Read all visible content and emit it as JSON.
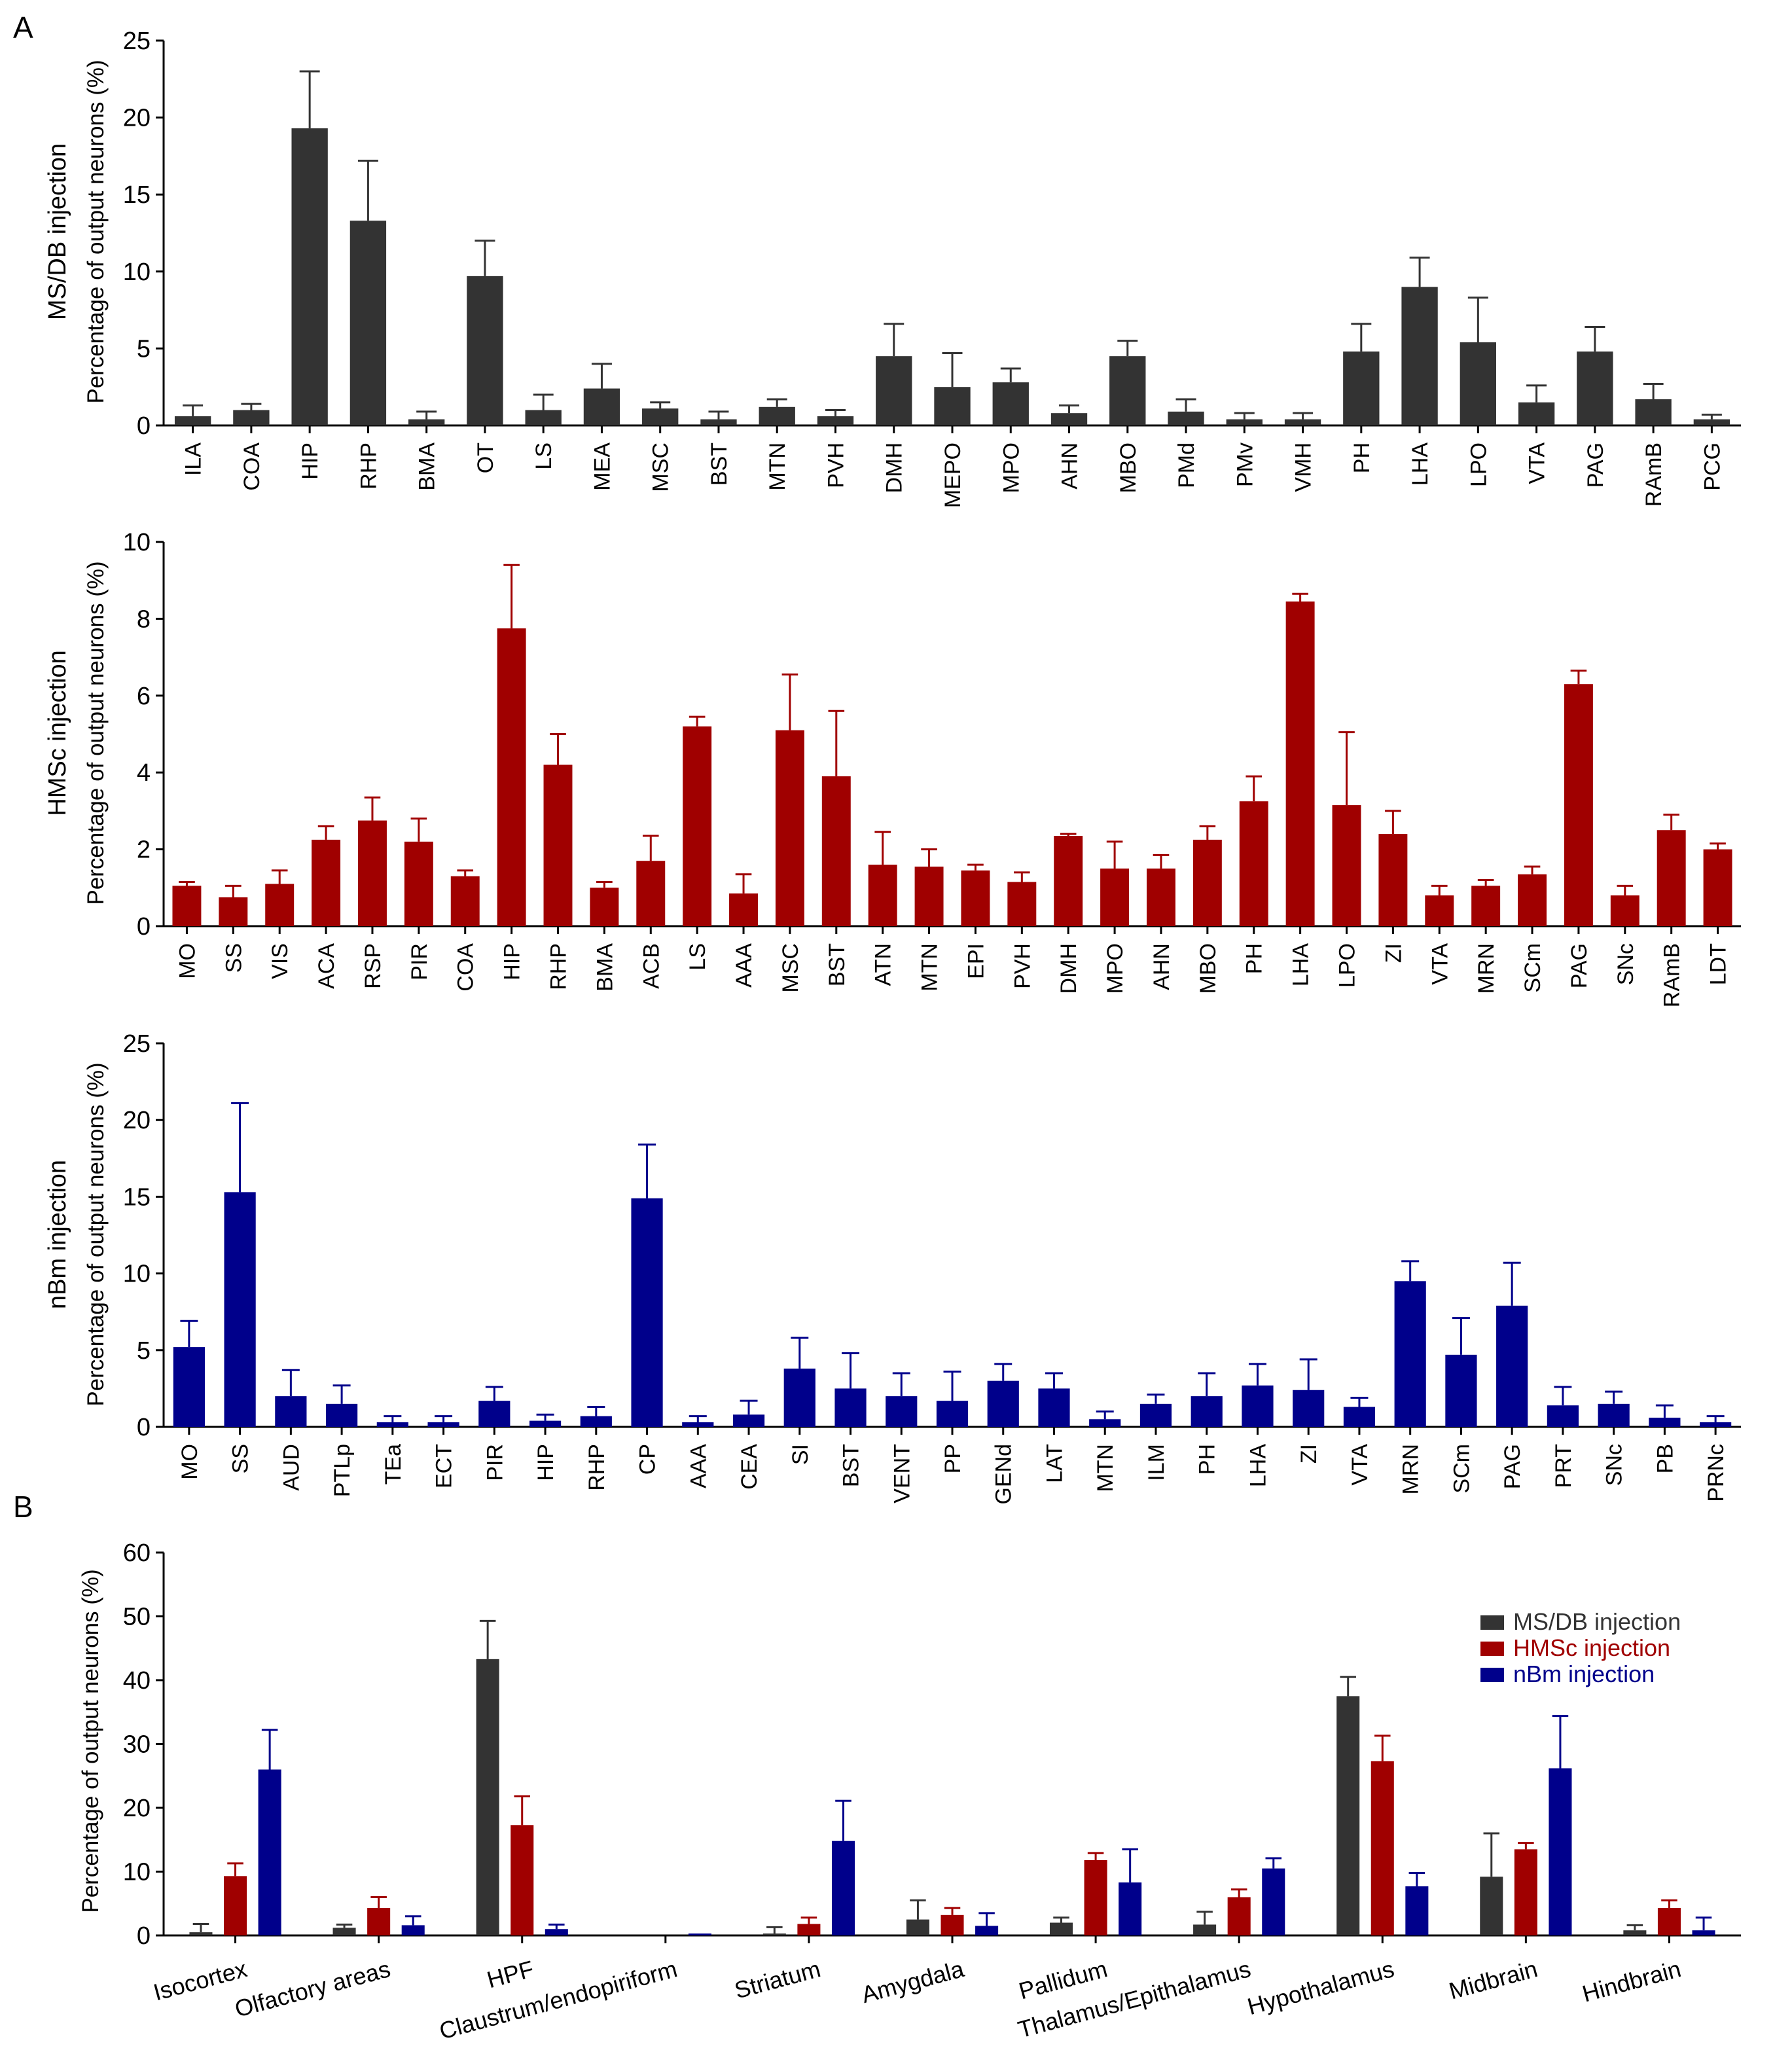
{
  "panels": [
    {
      "panel_label": "A",
      "ylabel": "MS/DB injection",
      "ylabel2": "Percentage of output neurons (%)",
      "ylim": [
        0,
        25
      ],
      "yticks": [
        "0",
        "5",
        "10",
        "15",
        "20",
        "25"
      ],
      "color": "#333333"
    },
    {
      "panel_label": "",
      "ylabel": "HMSc injection",
      "ylabel2": "Percentage of output neurons (%)",
      "ylim": [
        0,
        10
      ],
      "yticks": [
        "0",
        "2",
        "4",
        "6",
        "8",
        "10"
      ],
      "color": "#a00000"
    },
    {
      "panel_label": "",
      "ylabel": "nBm injection",
      "ylabel2": "Percentage of output neurons (%)",
      "ylim": [
        0,
        25
      ],
      "yticks": [
        "0",
        "5",
        "10",
        "15",
        "20",
        "25"
      ],
      "color": "#00008b"
    },
    {
      "panel_label": "B",
      "ylabel": "",
      "ylabel2": "Percentage of output neurons (%)",
      "ylim": [
        0,
        60
      ],
      "yticks": [
        "0",
        "10",
        "20",
        "30",
        "40",
        "50",
        "60"
      ],
      "legend": [
        "MS/DB injection",
        "HMSc injection",
        "nBm injection"
      ],
      "legend_colors": [
        "#333333",
        "#a00000",
        "#00008b"
      ]
    }
  ],
  "chart_data": [
    {
      "type": "bar",
      "title": "",
      "ylabel": "Percentage of output neurons (%)",
      "ylim": [
        0,
        25
      ],
      "categories": [
        "ILA",
        "COA",
        "HIP",
        "RHP",
        "BMA",
        "OT",
        "LS",
        "MEA",
        "MSC",
        "BST",
        "MTN",
        "PVH",
        "DMH",
        "MEPO",
        "MPO",
        "AHN",
        "MBO",
        "PMd",
        "PMv",
        "VMH",
        "PH",
        "LHA",
        "LPO",
        "VTA",
        "PAG",
        "RAmB",
        "PCG"
      ],
      "series": [
        {
          "name": "MS/DB injection",
          "values": [
            0.6,
            1.0,
            19.3,
            13.3,
            0.4,
            9.7,
            1.0,
            2.4,
            1.1,
            0.4,
            1.2,
            0.6,
            4.5,
            2.5,
            2.8,
            0.8,
            4.5,
            0.9,
            0.4,
            0.4,
            4.8,
            9.0,
            5.4,
            1.5,
            4.8,
            1.7,
            0.4
          ],
          "errors": [
            0.7,
            0.4,
            3.7,
            3.9,
            0.5,
            2.3,
            1.0,
            1.6,
            0.4,
            0.5,
            0.5,
            0.4,
            2.1,
            2.2,
            0.9,
            0.5,
            1.0,
            0.8,
            0.4,
            0.4,
            1.8,
            1.9,
            2.9,
            1.1,
            1.6,
            1.0,
            0.3
          ]
        }
      ]
    },
    {
      "type": "bar",
      "title": "",
      "ylabel": "Percentage of output neurons (%)",
      "ylim": [
        0,
        10
      ],
      "categories": [
        "MO",
        "SS",
        "VIS",
        "ACA",
        "RSP",
        "PIR",
        "COA",
        "HIP",
        "RHP",
        "BMA",
        "ACB",
        "LS",
        "AAA",
        "MSC",
        "BST",
        "ATN",
        "MTN",
        "EPI",
        "PVH",
        "DMH",
        "MPO",
        "AHN",
        "MBO",
        "PH",
        "LHA",
        "LPO",
        "ZI",
        "VTA",
        "MRN",
        "SCm",
        "PAG",
        "SNc",
        "RAmB",
        "LDT"
      ],
      "series": [
        {
          "name": "HMSc injection",
          "values": [
            1.05,
            0.75,
            1.1,
            2.25,
            2.75,
            2.2,
            1.3,
            7.75,
            4.2,
            1.0,
            1.7,
            5.2,
            0.85,
            5.1,
            3.9,
            1.6,
            1.55,
            1.45,
            1.15,
            2.35,
            1.5,
            1.5,
            2.25,
            3.25,
            8.45,
            3.15,
            2.4,
            0.8,
            1.05,
            1.35,
            6.3,
            0.8,
            2.5,
            2.0
          ],
          "errors": [
            0.1,
            0.3,
            0.35,
            0.35,
            0.6,
            0.6,
            0.15,
            1.65,
            0.8,
            0.15,
            0.65,
            0.25,
            0.5,
            1.45,
            1.7,
            0.85,
            0.45,
            0.15,
            0.25,
            0.05,
            0.7,
            0.35,
            0.35,
            0.65,
            0.2,
            1.9,
            0.6,
            0.25,
            0.15,
            0.2,
            0.35,
            0.25,
            0.4,
            0.15
          ]
        }
      ]
    },
    {
      "type": "bar",
      "title": "",
      "ylabel": "Percentage of output neurons (%)",
      "ylim": [
        0,
        25
      ],
      "categories": [
        "MO",
        "SS",
        "AUD",
        "PTLp",
        "TEa",
        "ECT",
        "PIR",
        "HIP",
        "RHP",
        "CP",
        "AAA",
        "CEA",
        "SI",
        "BST",
        "VENT",
        "PP",
        "GENd",
        "LAT",
        "MTN",
        "ILM",
        "PH",
        "LHA",
        "ZI",
        "VTA",
        "MRN",
        "SCm",
        "PAG",
        "PRT",
        "SNc",
        "PB",
        "PRNc"
      ],
      "series": [
        {
          "name": "nBm injection",
          "values": [
            5.2,
            15.3,
            2.0,
            1.5,
            0.3,
            0.3,
            1.7,
            0.4,
            0.7,
            14.9,
            0.3,
            0.8,
            3.8,
            2.5,
            2.0,
            1.7,
            3.0,
            2.5,
            0.5,
            1.5,
            2.0,
            2.7,
            2.4,
            1.3,
            9.5,
            4.7,
            7.9,
            1.4,
            1.5,
            0.6,
            0.3
          ],
          "errors": [
            1.7,
            5.8,
            1.7,
            1.2,
            0.4,
            0.4,
            0.9,
            0.4,
            0.6,
            3.5,
            0.4,
            0.9,
            2.0,
            2.3,
            1.5,
            1.9,
            1.1,
            1.0,
            0.5,
            0.6,
            1.5,
            1.4,
            2.0,
            0.6,
            1.3,
            2.4,
            2.8,
            1.2,
            0.8,
            0.8,
            0.4
          ]
        }
      ]
    },
    {
      "type": "bar",
      "title": "",
      "ylabel": "Percentage of output neurons (%)",
      "ylim": [
        0,
        60
      ],
      "categories": [
        "Isocortex",
        "Olfactory areas",
        "HPF",
        "Claustrum/endopiriform",
        "Striatum",
        "Amygdala",
        "Pallidum",
        "Thalamus/Epithalamus",
        "Hypothalamus",
        "Midbrain",
        "Hindbrain"
      ],
      "series": [
        {
          "name": "MS/DB injection",
          "values": [
            0.5,
            1.2,
            43.3,
            0,
            0.3,
            2.5,
            2.0,
            1.7,
            37.5,
            9.2,
            0.8
          ],
          "errors": [
            1.3,
            0.5,
            6.0,
            0,
            1.0,
            3.0,
            0.8,
            2.0,
            3.0,
            6.8,
            0.8
          ]
        },
        {
          "name": "HMSc injection",
          "values": [
            9.3,
            4.3,
            17.3,
            0,
            1.8,
            3.2,
            11.8,
            6.0,
            27.3,
            13.5,
            4.3
          ],
          "errors": [
            2.0,
            1.7,
            4.5,
            0,
            1.0,
            1.1,
            1.1,
            1.2,
            4.0,
            1.0,
            1.2
          ]
        },
        {
          "name": "nBm injection",
          "values": [
            26.0,
            1.6,
            1.0,
            0.3,
            14.8,
            1.5,
            8.3,
            10.5,
            7.7,
            26.2,
            0.8
          ],
          "errors": [
            6.2,
            1.4,
            0.7,
            0,
            6.3,
            2.0,
            5.2,
            1.6,
            2.1,
            8.2,
            2.0
          ]
        }
      ]
    }
  ]
}
